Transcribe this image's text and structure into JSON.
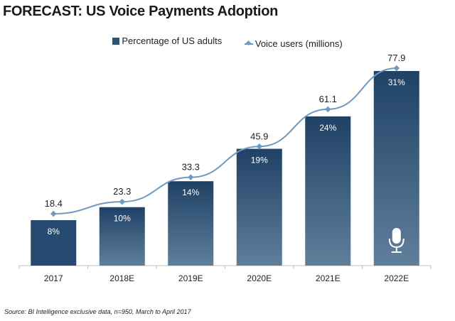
{
  "chart_data": {
    "type": "bar",
    "title": "FORECAST: US Voice Payments Adoption",
    "categories": [
      "2017",
      "2018E",
      "2019E",
      "2020E",
      "2021E",
      "2022E"
    ],
    "series": [
      {
        "name": "Percentage of US adults",
        "type": "bar",
        "values": [
          8,
          10,
          14,
          19,
          24,
          31
        ],
        "labels": [
          "8%",
          "10%",
          "14%",
          "19%",
          "24%",
          "31%"
        ],
        "color": "#2e5275"
      },
      {
        "name": "Voice users (millions)",
        "type": "line",
        "values": [
          18.4,
          23.3,
          33.3,
          45.9,
          61.1,
          77.9
        ],
        "labels": [
          "18.4",
          "23.3",
          "33.3",
          "45.9",
          "61.1",
          "77.9"
        ],
        "color": "#6d9ac4"
      }
    ],
    "legend": "top",
    "grid": false,
    "icon": "microphone-icon",
    "source": "Source: BI Intelligence exclusive data, n=950, March to April 2017"
  }
}
